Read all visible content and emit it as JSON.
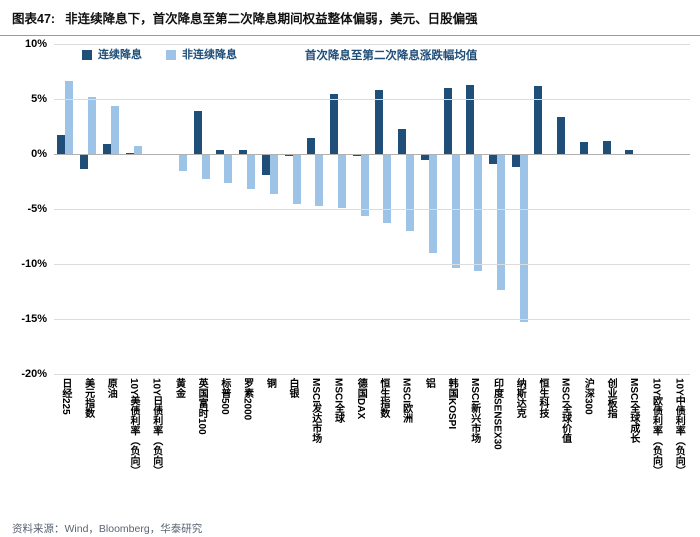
{
  "header": {
    "figure_label": "图表47:",
    "title": "非连续降息下，首次降息至第二次降息期间权益整体偏弱，美元、日股偏强"
  },
  "chart_data": {
    "type": "bar",
    "title": "首次降息至第二次降息涨跌幅均值",
    "unit": "%",
    "ylim": [
      -20,
      10
    ],
    "ytick_step": 5,
    "ytick_labels": [
      "10%",
      "5%",
      "0%",
      "-5%",
      "-10%",
      "-15%",
      "-20%"
    ],
    "grid": true,
    "legend_position": "top-left",
    "legend": [
      {
        "label": "连续降息",
        "color": "#1F4E79"
      },
      {
        "label": "非连续降息",
        "color": "#9DC3E6"
      }
    ],
    "categories": [
      "日经225",
      "美元指数",
      "原油",
      "10Y美债利率（负向）",
      "10Y日债利率（负向）",
      "黄金",
      "英国富时100",
      "标普500",
      "罗素2000",
      "铜",
      "白银",
      "MSCI发达市场",
      "MSCI全球",
      "德国DAX",
      "恒生指数",
      "MSCI欧洲",
      "铝",
      "韩国KOSPI",
      "MSCI新兴市场",
      "印度SENSEX30",
      "纳斯达克",
      "恒生科技",
      "MSCI全球价值",
      "沪深300",
      "创业板指",
      "MSCI全球成长",
      "10Y欧债利率（负向）",
      "10Y中债利率（负向）"
    ],
    "series": [
      {
        "name": "连续降息",
        "color": "#1F4E79",
        "values": [
          1.7,
          -1.4,
          0.9,
          0.1,
          0.0,
          -0.1,
          3.9,
          0.4,
          0.4,
          -1.9,
          -0.2,
          1.5,
          5.5,
          -0.2,
          5.8,
          2.3,
          -0.5,
          6.0,
          6.3,
          -0.9,
          -1.2,
          6.2,
          3.4,
          1.1,
          1.2,
          0.4,
          0.0,
          0.0
        ]
      },
      {
        "name": "非连续降息",
        "color": "#9DC3E6",
        "values": [
          6.6,
          5.2,
          4.4,
          0.7,
          -0.1,
          -1.5,
          -2.3,
          -2.6,
          -3.2,
          -3.6,
          -4.5,
          -4.7,
          -4.9,
          -5.6,
          -6.3,
          -7.0,
          -9.0,
          -10.4,
          -10.6,
          -12.4,
          -15.3,
          null,
          null,
          null,
          null,
          null,
          null,
          null
        ]
      }
    ]
  },
  "footer": {
    "source": "资料来源：Wind，Bloomberg，华泰研究"
  }
}
